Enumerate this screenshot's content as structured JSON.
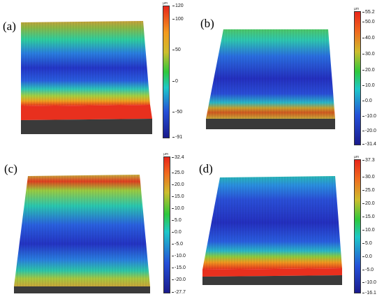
{
  "panels": [
    {
      "label": "(a)",
      "unit": "µm",
      "ticks": [
        "120",
        "100",
        "50",
        "0",
        "-50",
        "-91"
      ],
      "ramp": "red-top"
    },
    {
      "label": "(b)",
      "unit": "µm",
      "ticks": [
        "55.2",
        "50.0",
        "40.0",
        "30.0",
        "20.0",
        "10.0",
        "0.0",
        "-10.0",
        "-20.0",
        "-31.4"
      ],
      "ramp": "green-top"
    },
    {
      "label": "(c)",
      "unit": "µm",
      "ticks": [
        "32.4",
        "25.0",
        "20.0",
        "15.0",
        "10.0",
        "5.0",
        "0.0",
        "-5.0",
        "-10.0",
        "-15.0",
        "-20.0",
        "-27.7"
      ],
      "ramp": "red-both"
    },
    {
      "label": "(d)",
      "unit": "µm",
      "ticks": [
        "37.3",
        "30.0",
        "25.0",
        "20.0",
        "15.0",
        "10.0",
        "5.0",
        "0.0",
        "-5.0",
        "-10.0",
        "-16.1"
      ],
      "ramp": "teal-top"
    }
  ],
  "colors": {
    "red": "#e8251a",
    "orange": "#f39a1e",
    "yellow": "#cdbd2d",
    "green": "#2ec83c",
    "cyan": "#1ec8c8",
    "blue": "#2450d8",
    "navy": "#1a1a8c",
    "base": "#3a3a3a"
  }
}
